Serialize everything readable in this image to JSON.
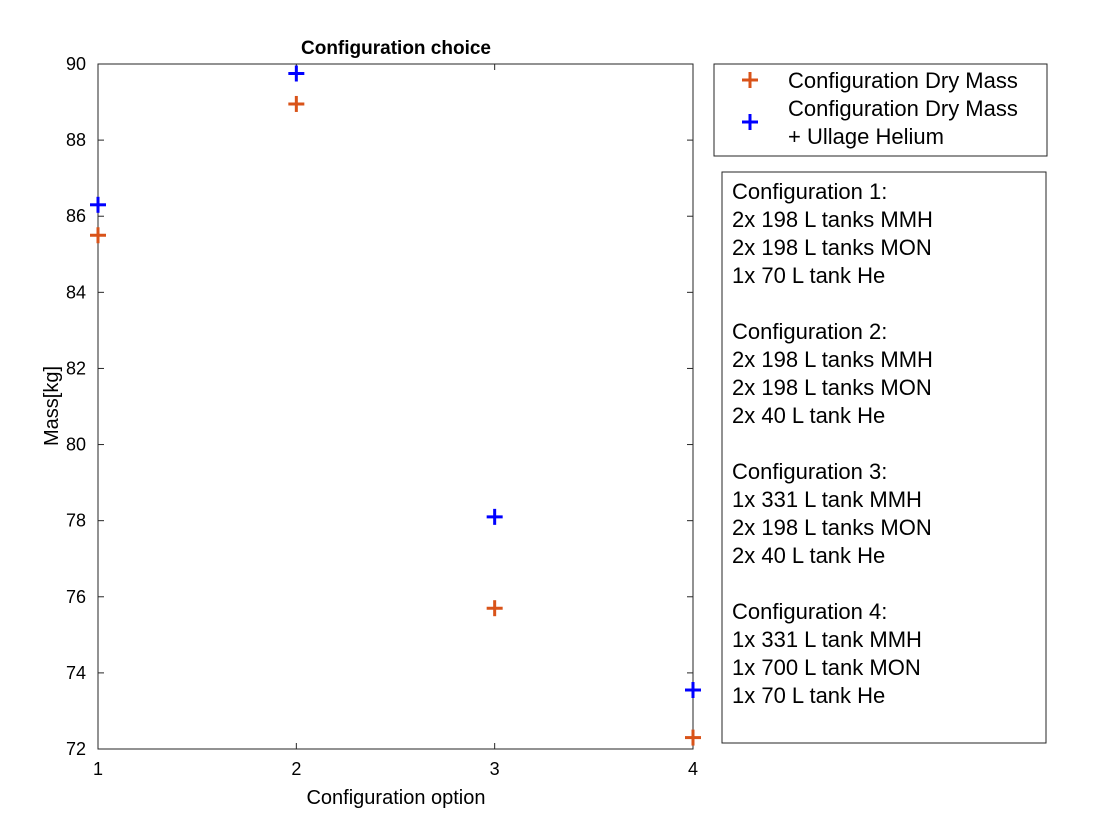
{
  "chart_data": {
    "type": "scatter",
    "title": "Configuration choice",
    "xlabel": "Configuration option",
    "ylabel": "Mass[kg]",
    "xlim": [
      1,
      4
    ],
    "ylim": [
      72,
      90
    ],
    "x": [
      1,
      2,
      3,
      4
    ],
    "xticks": [
      "1",
      "2",
      "3",
      "4"
    ],
    "yticks": [
      "72",
      "74",
      "76",
      "78",
      "80",
      "82",
      "84",
      "86",
      "88",
      "90"
    ],
    "grid": false,
    "marker": "plus",
    "legend_position": "outside-right-top",
    "series": [
      {
        "name": "Configuration Dry Mass",
        "name_lines": [
          "Configuration Dry Mass"
        ],
        "color": "#d95319",
        "values": [
          85.5,
          88.95,
          75.7,
          72.3
        ]
      },
      {
        "name": "Configuration Dry Mass + Ullage Helium",
        "name_lines": [
          "Configuration Dry Mass",
          "+ Ullage Helium"
        ],
        "color": "#0000ff",
        "values": [
          86.3,
          89.75,
          78.1,
          73.55
        ]
      }
    ],
    "annotation_lines": [
      "Configuration 1:",
      "2x 198 L tanks MMH",
      "2x 198 L tanks MON",
      "1x 70 L tank He",
      "",
      "Configuration 2:",
      "2x 198 L tanks MMH",
      "2x 198 L tanks MON",
      "2x 40 L tank He",
      "",
      "Configuration 3:",
      "1x 331 L tank MMH",
      "2x 198 L tanks MON",
      "2x 40 L tank He",
      "",
      "Configuration 4:",
      "1x 331 L tank MMH",
      "1x 700 L tank MON",
      "1x 70 L tank He"
    ]
  }
}
